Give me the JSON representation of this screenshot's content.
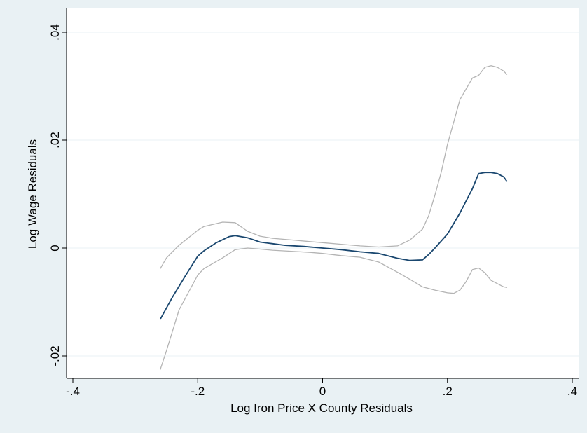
{
  "chart_data": {
    "type": "line",
    "title": "",
    "xlabel": "Log Iron Price X County  Residuals",
    "ylabel": "Log Wage Residuals",
    "xlim": [
      -0.4,
      0.4
    ],
    "ylim": [
      -0.02,
      0.04
    ],
    "xticks": [
      {
        "value": -0.4,
        "label": "-.4"
      },
      {
        "value": -0.2,
        "label": "-.2"
      },
      {
        "value": 0,
        "label": "0"
      },
      {
        "value": 0.2,
        "label": ".2"
      },
      {
        "value": 0.4,
        "label": ".4"
      }
    ],
    "yticks": [
      {
        "value": -0.02,
        "label": "-.02"
      },
      {
        "value": 0,
        "label": "0"
      },
      {
        "value": 0.02,
        "label": ".02"
      },
      {
        "value": 0.04,
        "label": ".04"
      }
    ],
    "grid": true,
    "legend": "none",
    "colors": {
      "outer_background": "#e9f1f4",
      "plot_background": "#ffffff",
      "estimate": "#1a476f",
      "bounds": "#b4b4b4",
      "grid": "#e9f1f4"
    },
    "series": [
      {
        "role": "estimate",
        "x": [
          -0.26,
          -0.24,
          -0.22,
          -0.2,
          -0.19,
          -0.17,
          -0.15,
          -0.14,
          -0.12,
          -0.1,
          -0.08,
          -0.06,
          -0.03,
          0,
          0.03,
          0.06,
          0.09,
          0.12,
          0.14,
          0.16,
          0.17,
          0.18,
          0.2,
          0.22,
          0.24,
          0.25,
          0.26,
          0.27,
          0.28,
          0.29,
          0.295
        ],
        "y": [
          -0.0132,
          -0.009,
          -0.0052,
          -0.0015,
          -0.0005,
          0.001,
          0.0021,
          0.0023,
          0.0019,
          0.0011,
          0.0008,
          0.0005,
          0.0003,
          0.0,
          -0.0003,
          -0.0007,
          -0.001,
          -0.0019,
          -0.0023,
          -0.0022,
          -0.0012,
          0.0,
          0.0026,
          0.0065,
          0.011,
          0.0138,
          0.014,
          0.014,
          0.0138,
          0.0132,
          0.0124
        ]
      },
      {
        "role": "upper-bound",
        "x": [
          -0.26,
          -0.25,
          -0.23,
          -0.2,
          -0.19,
          -0.16,
          -0.14,
          -0.12,
          -0.1,
          -0.08,
          -0.05,
          -0.02,
          0,
          0.03,
          0.06,
          0.09,
          0.12,
          0.14,
          0.16,
          0.17,
          0.18,
          0.19,
          0.2,
          0.22,
          0.24,
          0.25,
          0.26,
          0.27,
          0.28,
          0.29,
          0.295
        ],
        "y": [
          -0.0038,
          -0.0018,
          0.0005,
          0.0033,
          0.004,
          0.0048,
          0.0047,
          0.0031,
          0.0022,
          0.0018,
          0.0015,
          0.0012,
          0.001,
          0.0007,
          0.0004,
          0.0002,
          0.0004,
          0.0015,
          0.0035,
          0.006,
          0.0098,
          0.014,
          0.0192,
          0.0275,
          0.0315,
          0.032,
          0.0335,
          0.0338,
          0.0335,
          0.0328,
          0.0322
        ]
      },
      {
        "role": "lower-bound",
        "x": [
          -0.26,
          -0.25,
          -0.23,
          -0.2,
          -0.19,
          -0.16,
          -0.14,
          -0.12,
          -0.1,
          -0.08,
          -0.05,
          -0.02,
          0,
          0.03,
          0.06,
          0.09,
          0.12,
          0.14,
          0.16,
          0.18,
          0.2,
          0.21,
          0.22,
          0.23,
          0.24,
          0.25,
          0.26,
          0.27,
          0.28,
          0.29,
          0.295
        ],
        "y": [
          -0.0225,
          -0.019,
          -0.0115,
          -0.005,
          -0.0038,
          -0.0018,
          -0.0003,
          0.0,
          -0.0002,
          -0.0004,
          -0.0006,
          -0.0008,
          -0.001,
          -0.0014,
          -0.0017,
          -0.0026,
          -0.0045,
          -0.0058,
          -0.0072,
          -0.0078,
          -0.0083,
          -0.0084,
          -0.0078,
          -0.0062,
          -0.004,
          -0.0037,
          -0.0046,
          -0.006,
          -0.0066,
          -0.0072,
          -0.0073
        ]
      }
    ]
  }
}
